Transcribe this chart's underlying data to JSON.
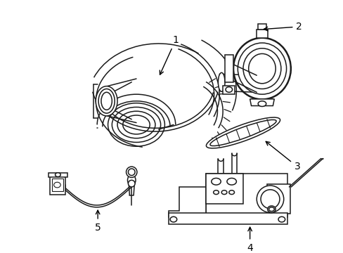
{
  "bg_color": "#ffffff",
  "line_color": "#1a1a1a",
  "lw": 1.1,
  "label_color": "#000000",
  "figsize": [
    4.89,
    3.6
  ],
  "dpi": 100
}
